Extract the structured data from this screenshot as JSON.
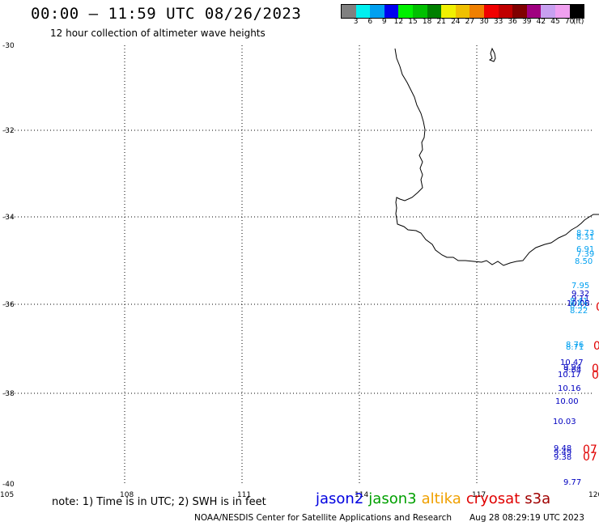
{
  "header": {
    "title": "00:00 – 11:59 UTC 08/26/2023",
    "subtitle": "12 hour collection of altimeter wave heights"
  },
  "colorbar": {
    "colors": [
      "#808080",
      "#00f0f0",
      "#00a0f0",
      "#0000f0",
      "#00f000",
      "#00c000",
      "#008000",
      "#f0f000",
      "#f0c000",
      "#f08000",
      "#f00000",
      "#c00000",
      "#800000",
      "#a00080",
      "#c8a0f0",
      "#f0a0f0",
      "#000000"
    ],
    "labels": [
      "3",
      "6",
      "9",
      "12",
      "15",
      "18",
      "21",
      "24",
      "27",
      "30",
      "33",
      "36",
      "39",
      "42",
      "45",
      "70",
      "(ft)"
    ]
  },
  "axes": {
    "lon_ticks": [
      "105",
      "108",
      "111",
      "114",
      "117",
      "120"
    ],
    "lat_ticks": [
      "-30",
      "-32",
      "-34",
      "-36",
      "-38",
      "-40"
    ]
  },
  "observations": [
    {
      "text": "8.73",
      "color": "#00a0f0"
    },
    {
      "text": "8.31",
      "color": "#00a0f0"
    },
    {
      "text": "6.91",
      "color": "#00a0f0"
    },
    {
      "text": "7.39",
      "color": "#00a0f0"
    },
    {
      "text": "8.50",
      "color": "#00a0f0"
    },
    {
      "text": "7.95",
      "color": "#00a0f0"
    },
    {
      "text": "9.32",
      "color": "#0000c0"
    },
    {
      "text": "9.11",
      "color": "#0000c0"
    },
    {
      "text": "8.41",
      "color": "#00a0f0"
    },
    {
      "text": "10.08",
      "color": "#0000c0"
    },
    {
      "text": "8.52",
      "color": "#00a0f0"
    },
    {
      "text": "8.22",
      "color": "#00a0f0"
    },
    {
      "text": "8.76",
      "color": "#00a0f0"
    },
    {
      "text": "8.71",
      "color": "#00a0f0"
    },
    {
      "text": "10.47",
      "color": "#0000c0"
    },
    {
      "text": "9.94",
      "color": "#0000c0"
    },
    {
      "text": "9.64",
      "color": "#0000c0"
    },
    {
      "text": "10.17",
      "color": "#0000c0"
    },
    {
      "text": "10.16",
      "color": "#0000c0"
    },
    {
      "text": "10.00",
      "color": "#0000c0"
    },
    {
      "text": "10.03",
      "color": "#0000c0"
    },
    {
      "text": "9.48",
      "color": "#0000c0"
    },
    {
      "text": "9.49",
      "color": "#0000c0"
    },
    {
      "text": "9.38",
      "color": "#0000c0"
    },
    {
      "text": "9.77",
      "color": "#0000c0"
    },
    {
      "text": "0",
      "color": "#e00000"
    },
    {
      "text": "0",
      "color": "#e00000"
    },
    {
      "text": "0",
      "color": "#e00000"
    },
    {
      "text": "0",
      "color": "#e00000"
    },
    {
      "text": "07",
      "color": "#e00000"
    },
    {
      "text": "07",
      "color": "#e00000"
    }
  ],
  "footer": {
    "note": "note: 1) Time is in UTC; 2) SWH is in feet",
    "legend": [
      {
        "label": "jason2",
        "color": "#0000e0"
      },
      {
        "label": "jason3",
        "color": "#00a000"
      },
      {
        "label": "altika",
        "color": "#f0a000"
      },
      {
        "label": "cryosat",
        "color": "#e00000"
      },
      {
        "label": "s3a",
        "color": "#a00000"
      }
    ],
    "credit": "NOAA/NESDIS Center for Satellite Applications and Research",
    "timestamp": "Aug 28 08:29:19 UTC 2023"
  }
}
